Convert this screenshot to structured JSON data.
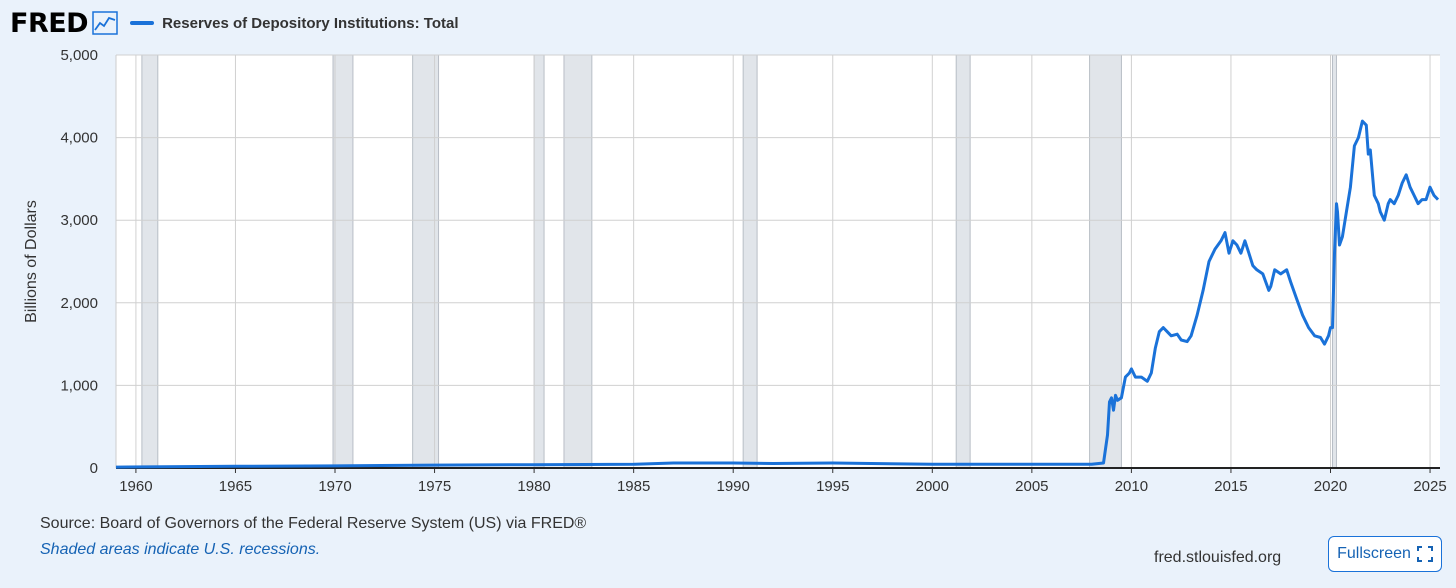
{
  "header": {
    "logo_text": "FRED",
    "logo_icon": "line-graph-icon",
    "legend_label": "Reserves of Depository Institutions: Total"
  },
  "footer": {
    "source": "Source: Board of Governors of the Federal Reserve System (US) via FRED®",
    "recession_note": "Shaded areas indicate U.S. recessions.",
    "site": "fred.stlouisfed.org",
    "fullscreen_label": "Fullscreen",
    "fullscreen_icon": "fullscreen-icon"
  },
  "colors": {
    "line": "#1a72d9",
    "recession": "#e1e5ea",
    "grid": "#d0d0d0",
    "background": "#eaf2fb"
  },
  "chart_data": {
    "type": "line",
    "title": "",
    "xlabel": "",
    "ylabel": "Billions of Dollars",
    "xlim": [
      1959.0,
      2025.5
    ],
    "ylim": [
      0,
      5000
    ],
    "x_ticks": [
      "1960",
      "1965",
      "1970",
      "1975",
      "1980",
      "1985",
      "1990",
      "1995",
      "2000",
      "2005",
      "2010",
      "2015",
      "2020",
      "2025"
    ],
    "y_ticks": [
      "0",
      "1,000",
      "2,000",
      "3,000",
      "4,000",
      "5,000"
    ],
    "grid": true,
    "recessions": [
      [
        1960.3,
        1961.1
      ],
      [
        1969.9,
        1970.9
      ],
      [
        1973.9,
        1975.2
      ],
      [
        1980.0,
        1980.5
      ],
      [
        1981.5,
        1982.9
      ],
      [
        1990.5,
        1991.2
      ],
      [
        2001.2,
        2001.9
      ],
      [
        2007.9,
        2009.5
      ],
      [
        2020.1,
        2020.3
      ]
    ],
    "series": [
      {
        "name": "Reserves of Depository Institutions: Total",
        "x": [
          1959.0,
          1965,
          1970,
          1975,
          1980,
          1985,
          1987,
          1990,
          1992,
          1995,
          2000,
          2005,
          2008.0,
          2008.6,
          2008.8,
          2008.9,
          2009.0,
          2009.1,
          2009.2,
          2009.3,
          2009.5,
          2009.7,
          2009.9,
          2010.0,
          2010.2,
          2010.5,
          2010.8,
          2011.0,
          2011.2,
          2011.4,
          2011.6,
          2011.8,
          2012.0,
          2012.3,
          2012.5,
          2012.8,
          2013.0,
          2013.3,
          2013.6,
          2013.9,
          2014.2,
          2014.5,
          2014.7,
          2014.9,
          2015.1,
          2015.3,
          2015.5,
          2015.7,
          2015.9,
          2016.1,
          2016.3,
          2016.6,
          2016.9,
          2017.0,
          2017.2,
          2017.5,
          2017.8,
          2018.0,
          2018.3,
          2018.6,
          2018.9,
          2019.2,
          2019.5,
          2019.7,
          2019.9,
          2020.0,
          2020.1,
          2020.2,
          2020.3,
          2020.35,
          2020.45,
          2020.6,
          2020.8,
          2021.0,
          2021.2,
          2021.4,
          2021.6,
          2021.8,
          2021.9,
          2022.0,
          2022.2,
          2022.4,
          2022.5,
          2022.7,
          2022.9,
          2023.0,
          2023.2,
          2023.4,
          2023.6,
          2023.8,
          2024.0,
          2024.2,
          2024.4,
          2024.6,
          2024.8,
          2025.0,
          2025.2,
          2025.4
        ],
        "values": [
          11,
          20,
          25,
          35,
          40,
          45,
          60,
          60,
          55,
          60,
          45,
          45,
          45,
          60,
          400,
          800,
          850,
          700,
          880,
          820,
          850,
          1100,
          1150,
          1200,
          1100,
          1100,
          1050,
          1150,
          1450,
          1650,
          1700,
          1650,
          1600,
          1620,
          1550,
          1530,
          1600,
          1850,
          2150,
          2500,
          2650,
          2750,
          2850,
          2600,
          2750,
          2700,
          2600,
          2750,
          2600,
          2450,
          2400,
          2350,
          2150,
          2200,
          2400,
          2350,
          2400,
          2250,
          2050,
          1850,
          1700,
          1600,
          1580,
          1500,
          1600,
          1700,
          1700,
          2600,
          3200,
          3100,
          2700,
          2800,
          3100,
          3400,
          3900,
          4000,
          4200,
          4150,
          3800,
          3850,
          3300,
          3200,
          3100,
          3000,
          3200,
          3250,
          3200,
          3300,
          3450,
          3550,
          3400,
          3300,
          3200,
          3250,
          3250,
          3400,
          3300,
          3250
        ]
      }
    ]
  }
}
